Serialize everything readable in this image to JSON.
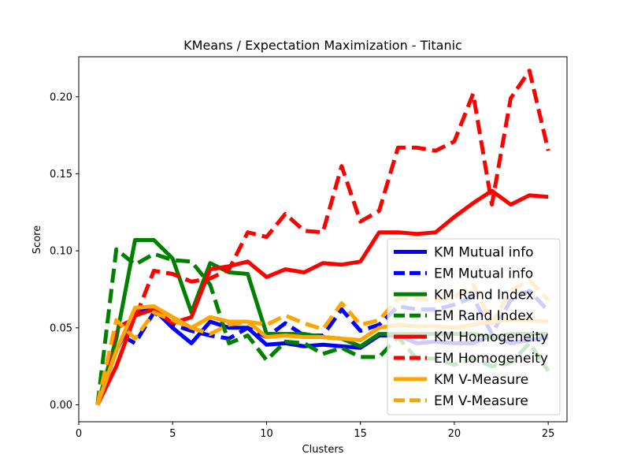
{
  "chart_data": {
    "type": "line",
    "title": "KMeans / Expectation Maximization - Titanic",
    "xlabel": "Clusters",
    "ylabel": "Score",
    "xlim": [
      0,
      26
    ],
    "ylim": [
      -0.011,
      0.226
    ],
    "xticks": [
      0,
      5,
      10,
      15,
      20,
      25
    ],
    "yticks": [
      0.0,
      0.05,
      0.1,
      0.15,
      0.2
    ],
    "ytick_labels": [
      "0.00",
      "0.05",
      "0.10",
      "0.15",
      "0.20"
    ],
    "grid": false,
    "legend_position": "lower-right",
    "x": [
      1,
      2,
      3,
      4,
      5,
      6,
      7,
      8,
      9,
      10,
      11,
      12,
      13,
      14,
      15,
      16,
      17,
      18,
      19,
      20,
      21,
      22,
      23,
      24,
      25
    ],
    "series": [
      {
        "name": "KM Mutual info",
        "color": "#0000ff",
        "dash": "solid",
        "values": [
          0.0,
          0.035,
          0.06,
          0.062,
          0.05,
          0.04,
          0.054,
          0.05,
          0.05,
          0.039,
          0.04,
          0.038,
          0.039,
          0.038,
          0.037,
          0.045,
          0.045,
          0.04,
          0.041,
          0.04,
          0.04,
          0.045,
          0.04,
          0.042,
          0.044
        ]
      },
      {
        "name": "EM Mutual info",
        "color": "#0000ff",
        "dash": "dashed",
        "values": [
          0.0,
          0.047,
          0.04,
          0.06,
          0.052,
          0.048,
          0.045,
          0.043,
          0.05,
          0.044,
          0.053,
          0.045,
          0.045,
          0.062,
          0.048,
          0.052,
          0.064,
          0.062,
          0.062,
          0.065,
          0.07,
          0.046,
          0.068,
          0.074,
          0.061
        ]
      },
      {
        "name": "KM Rand Index",
        "color": "#008000",
        "dash": "solid",
        "values": [
          0.0,
          0.043,
          0.107,
          0.107,
          0.095,
          0.06,
          0.092,
          0.086,
          0.085,
          0.046,
          0.046,
          0.046,
          0.044,
          0.043,
          0.038,
          0.046,
          0.046,
          0.046,
          0.046,
          0.046,
          0.046,
          0.044,
          0.046,
          0.046,
          0.046
        ]
      },
      {
        "name": "EM Rand Index",
        "color": "#008000",
        "dash": "dashed",
        "values": [
          0.0,
          0.101,
          0.091,
          0.098,
          0.094,
          0.093,
          0.078,
          0.04,
          0.045,
          0.029,
          0.041,
          0.04,
          0.033,
          0.037,
          0.031,
          0.031,
          0.044,
          0.03,
          0.03,
          0.026,
          0.03,
          0.025,
          0.027,
          0.04,
          0.022
        ]
      },
      {
        "name": "KM Homogeneity",
        "color": "#ff0000",
        "dash": "solid",
        "values": [
          0.0,
          0.025,
          0.058,
          0.062,
          0.053,
          0.057,
          0.088,
          0.09,
          0.093,
          0.083,
          0.088,
          0.086,
          0.092,
          0.091,
          0.093,
          0.112,
          0.112,
          0.111,
          0.112,
          0.122,
          0.131,
          0.139,
          0.13,
          0.136,
          0.135
        ]
      },
      {
        "name": "EM Homogeneity",
        "color": "#ff0000",
        "dash": "dashed",
        "values": [
          0.0,
          0.05,
          0.056,
          0.087,
          0.085,
          0.08,
          0.082,
          0.088,
          0.112,
          0.109,
          0.124,
          0.113,
          0.112,
          0.155,
          0.119,
          0.126,
          0.167,
          0.167,
          0.165,
          0.171,
          0.202,
          0.13,
          0.199,
          0.217,
          0.165
        ]
      },
      {
        "name": "KM V-Measure",
        "color": "#ffa500",
        "dash": "solid",
        "values": [
          0.0,
          0.035,
          0.063,
          0.064,
          0.057,
          0.05,
          0.057,
          0.054,
          0.054,
          0.044,
          0.045,
          0.044,
          0.044,
          0.043,
          0.042,
          0.05,
          0.052,
          0.051,
          0.051,
          0.05,
          0.052,
          0.054,
          0.055,
          0.055,
          0.054
        ]
      },
      {
        "name": "EM V-Measure",
        "color": "#ffa500",
        "dash": "dashed",
        "values": [
          0.0,
          0.055,
          0.043,
          0.06,
          0.055,
          0.05,
          0.046,
          0.052,
          0.054,
          0.052,
          0.058,
          0.053,
          0.049,
          0.066,
          0.052,
          0.055,
          0.069,
          0.069,
          0.068,
          0.07,
          0.078,
          0.053,
          0.074,
          0.081,
          0.068
        ]
      }
    ]
  }
}
